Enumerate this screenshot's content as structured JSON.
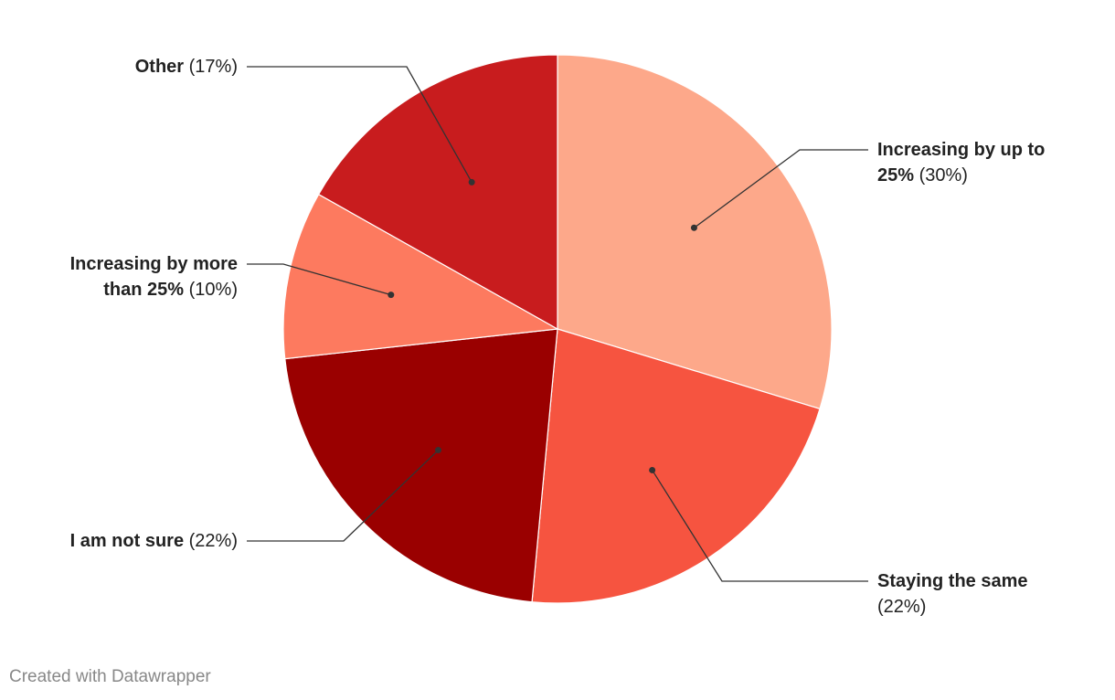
{
  "chart_data": {
    "type": "pie",
    "categories": [
      "Increasing by up to 25%",
      "Staying the same",
      "I am not sure",
      "Increasing by more than 25%",
      "Other"
    ],
    "values": [
      30,
      22,
      22,
      10,
      17
    ],
    "value_labels": [
      "(30%)",
      "(22%)",
      "(22%)",
      "(10%)",
      "(17%)"
    ],
    "colors": [
      "#fda88a",
      "#f65440",
      "#9a0000",
      "#fd7a5f",
      "#c81c1e"
    ],
    "credit": "Created with Datawrapper"
  }
}
